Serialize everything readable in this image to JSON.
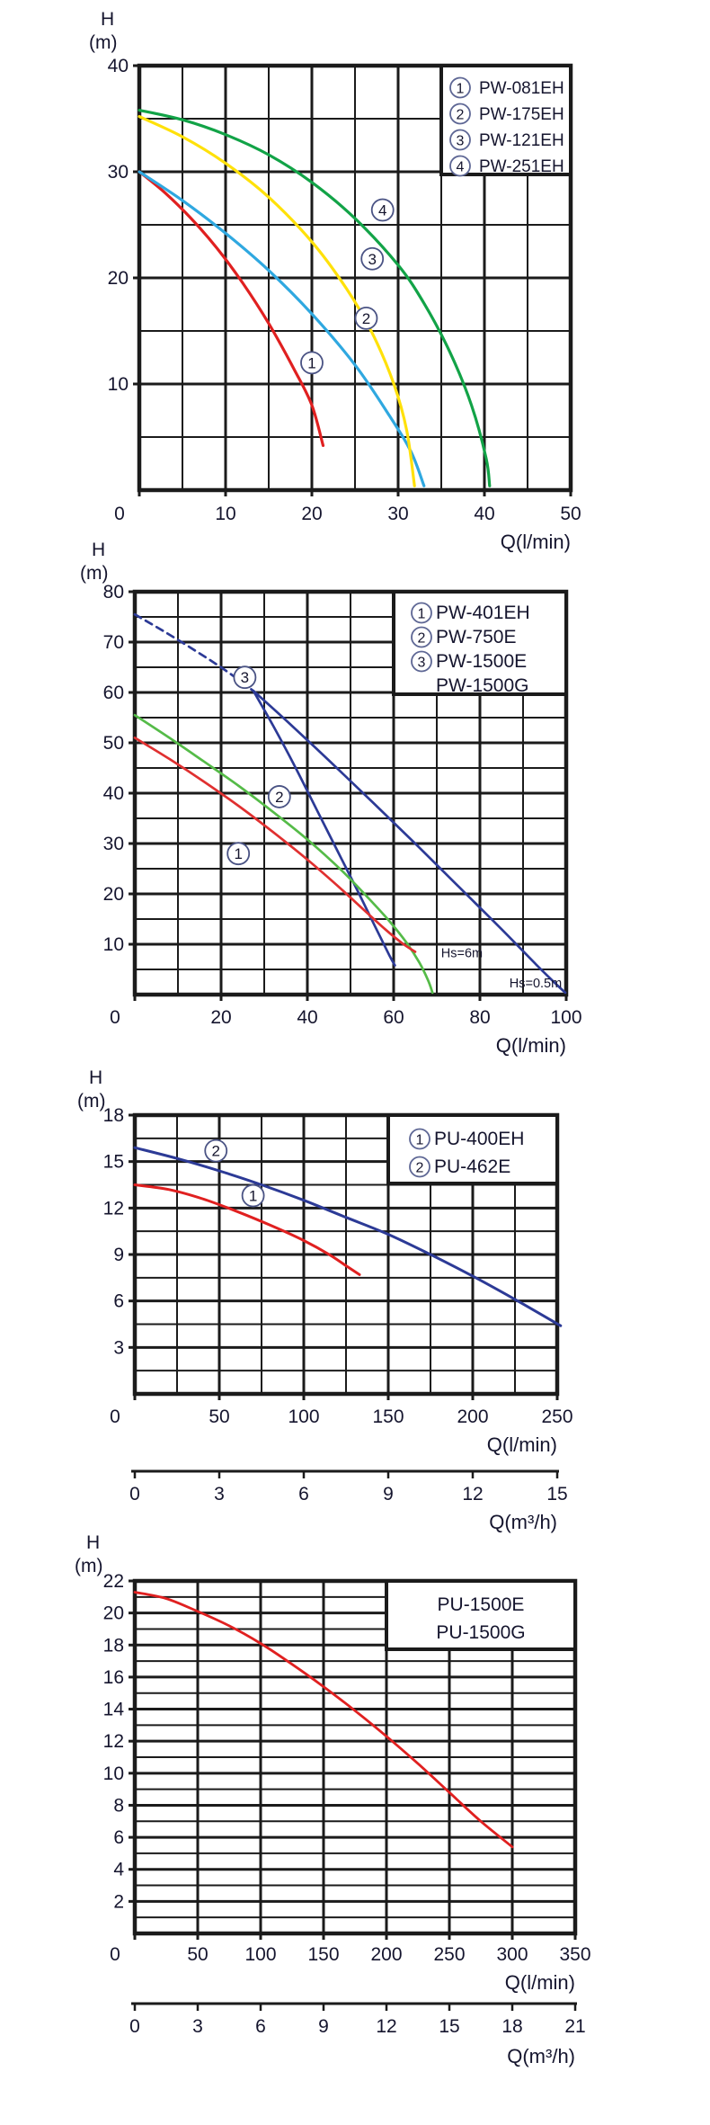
{
  "page": {
    "background": "#ffffff"
  },
  "style": {
    "grid_color": "#1b1b1b",
    "text_color": "#15152e",
    "marker_stroke": "#4a5384",
    "legend_circle_stroke": "#5d6694"
  },
  "chart_data": [
    {
      "type": "line",
      "h_axis_header": [
        "H",
        "(m)"
      ],
      "x_axis": {
        "label": "Q(l/min)",
        "min": 0,
        "max": 50,
        "grid_step": 5,
        "label_step": 10,
        "tick_values": [
          0,
          10,
          20,
          30,
          40,
          50
        ],
        "tick_labels": [
          "0",
          "10",
          "20",
          "30",
          "40",
          "50"
        ]
      },
      "y_axis": {
        "min": 0,
        "max": 40,
        "grid_step": 5,
        "label_step": 10,
        "tick_values": [
          10,
          20,
          30,
          40
        ],
        "tick_labels": [
          "10",
          "20",
          "30",
          "40"
        ]
      },
      "legend": [
        {
          "num": "1",
          "label": "PW-081EH"
        },
        {
          "num": "2",
          "label": "PW-175EH"
        },
        {
          "num": "3",
          "label": "PW-121EH"
        },
        {
          "num": "4",
          "label": "PW-251EH"
        }
      ],
      "series": [
        {
          "name": "PW-081EH",
          "color": "#e02020",
          "dash": false,
          "points": [
            [
              0,
              30
            ],
            [
              3,
              28
            ],
            [
              6,
              25.6
            ],
            [
              9,
              22.8
            ],
            [
              12,
              19.5
            ],
            [
              15,
              15.7
            ],
            [
              18,
              11.3
            ],
            [
              20,
              8
            ],
            [
              21.3,
              4.2
            ]
          ]
        },
        {
          "name": "PW-175EH",
          "color": "#2fa8e0",
          "dash": false,
          "points": [
            [
              0,
              30
            ],
            [
              5,
              27.3
            ],
            [
              10,
              24.2
            ],
            [
              15,
              20.7
            ],
            [
              20,
              16.6
            ],
            [
              25,
              11.8
            ],
            [
              29,
              7
            ],
            [
              31.5,
              3.6
            ],
            [
              33,
              0.4
            ]
          ]
        },
        {
          "name": "PW-121EH",
          "color": "#ffe10a",
          "dash": false,
          "points": [
            [
              0,
              35.2
            ],
            [
              5,
              33.3
            ],
            [
              10,
              30.8
            ],
            [
              15,
              27.6
            ],
            [
              20,
              23.4
            ],
            [
              24,
              19
            ],
            [
              27,
              14.8
            ],
            [
              29.5,
              10
            ],
            [
              31,
              5.6
            ],
            [
              31.9,
              0.4
            ]
          ]
        },
        {
          "name": "PW-251EH",
          "color": "#12a347",
          "dash": false,
          "points": [
            [
              0,
              35.8
            ],
            [
              5,
              34.9
            ],
            [
              10,
              33.5
            ],
            [
              15,
              31.6
            ],
            [
              20,
              29
            ],
            [
              25,
              25.6
            ],
            [
              30,
              21.2
            ],
            [
              33,
              17.6
            ],
            [
              36,
              13
            ],
            [
              38.5,
              8
            ],
            [
              40.2,
              3
            ],
            [
              40.6,
              0.4
            ]
          ]
        }
      ],
      "markers": [
        {
          "num": "1",
          "at": [
            20,
            12
          ]
        },
        {
          "num": "2",
          "at": [
            26.3,
            16.2
          ]
        },
        {
          "num": "3",
          "at": [
            27,
            21.8
          ]
        },
        {
          "num": "4",
          "at": [
            28.2,
            26.4
          ]
        }
      ],
      "annotations": []
    },
    {
      "type": "line",
      "h_axis_header": [
        "H",
        "(m)"
      ],
      "x_axis": {
        "label": "Q(l/min)",
        "min": 0,
        "max": 100,
        "grid_step": 10,
        "label_step": 20,
        "tick_values": [
          0,
          20,
          40,
          60,
          80,
          100
        ],
        "tick_labels": [
          "0",
          "20",
          "40",
          "60",
          "80",
          "100"
        ]
      },
      "y_axis": {
        "min": 0,
        "max": 80,
        "grid_step": 5,
        "label_step": 10,
        "tick_values": [
          10,
          20,
          30,
          40,
          50,
          60,
          70,
          80
        ],
        "tick_labels": [
          "10",
          "20",
          "30",
          "40",
          "50",
          "60",
          "70",
          "80"
        ]
      },
      "legend": [
        {
          "num": "1",
          "label": "PW-401EH"
        },
        {
          "num": "2",
          "label": "PW-750E"
        },
        {
          "num": "3",
          "label": "PW-1500E"
        },
        {
          "num": "",
          "label": "PW-1500G"
        }
      ],
      "series": [
        {
          "name": "PW-1500E/PW-1500G shut-off",
          "color": "#2c3a96",
          "dash": true,
          "points": [
            [
              0,
              75.5
            ],
            [
              7,
              72
            ],
            [
              14,
              68.3
            ],
            [
              21,
              64.4
            ],
            [
              27.5,
              60.3
            ]
          ]
        },
        {
          "name": "PW-1500E",
          "color": "#2c3a96",
          "dash": false,
          "points": [
            [
              27.5,
              60.3
            ],
            [
              32,
              53.5
            ],
            [
              37,
              45.5
            ],
            [
              42,
              37
            ],
            [
              47,
              28.5
            ],
            [
              52,
              20
            ],
            [
              56,
              13
            ],
            [
              59,
              7.8
            ],
            [
              60.3,
              5.8
            ]
          ]
        },
        {
          "name": "PW-1500G",
          "color": "#2c3a96",
          "dash": false,
          "points": [
            [
              27.5,
              60.3
            ],
            [
              35,
              54.5
            ],
            [
              45,
              46.5
            ],
            [
              55,
              38.3
            ],
            [
              65,
              30
            ],
            [
              75,
              21.5
            ],
            [
              85,
              13
            ],
            [
              93,
              6
            ],
            [
              98,
              1.8
            ],
            [
              99.8,
              0.4
            ]
          ]
        },
        {
          "name": "PW-750E",
          "color": "#55bb48",
          "dash": false,
          "points": [
            [
              0,
              55.5
            ],
            [
              8,
              51
            ],
            [
              16,
              46.3
            ],
            [
              24,
              41.5
            ],
            [
              32,
              36.3
            ],
            [
              40,
              30.8
            ],
            [
              48,
              24.6
            ],
            [
              54,
              19.3
            ],
            [
              59,
              14.6
            ],
            [
              63,
              10.3
            ],
            [
              66,
              6.3
            ],
            [
              68,
              2.8
            ],
            [
              69,
              0.4
            ]
          ]
        },
        {
          "name": "PW-401EH",
          "color": "#e03030",
          "dash": false,
          "points": [
            [
              0,
              51
            ],
            [
              8,
              46.8
            ],
            [
              16,
              42.3
            ],
            [
              24,
              37.5
            ],
            [
              32,
              32.3
            ],
            [
              40,
              26.8
            ],
            [
              47,
              21.6
            ],
            [
              53,
              16.9
            ],
            [
              58,
              13
            ],
            [
              62,
              10.2
            ],
            [
              65,
              8.5
            ]
          ]
        }
      ],
      "markers": [
        {
          "num": "1",
          "at": [
            24,
            28
          ]
        },
        {
          "num": "2",
          "at": [
            33.5,
            39.3
          ]
        },
        {
          "num": "3",
          "at": [
            25.5,
            63
          ]
        }
      ],
      "annotations": [
        {
          "text": "Hs=6m",
          "at": [
            71,
            7.4
          ],
          "anchor": "start"
        },
        {
          "text": "Hs=0.5m",
          "at": [
            99,
            1.4
          ],
          "anchor": "end"
        }
      ]
    },
    {
      "type": "line",
      "h_axis_header": [
        "H",
        "(m)"
      ],
      "x_axis": {
        "label": "Q(l/min)",
        "min": 0,
        "max": 250,
        "grid_step": 25,
        "label_step": 50,
        "tick_values": [
          0,
          50,
          100,
          150,
          200,
          250
        ],
        "tick_labels": [
          "0",
          "50",
          "100",
          "150",
          "200",
          "250"
        ]
      },
      "y_axis": {
        "min": 0,
        "max": 18,
        "grid_step": 1.5,
        "label_step": 3,
        "tick_values": [
          3,
          6,
          9,
          12,
          15,
          18
        ],
        "tick_labels": [
          "3",
          "6",
          "9",
          "12",
          "15",
          "18"
        ]
      },
      "secondary_x_axis": {
        "label": "Q(m³/h)",
        "min": 0,
        "max": 15,
        "tick_values": [
          0,
          3,
          6,
          9,
          12,
          15
        ],
        "tick_labels": [
          "0",
          "3",
          "6",
          "9",
          "12",
          "15"
        ]
      },
      "legend": [
        {
          "num": "1",
          "label": "PU-400EH"
        },
        {
          "num": "2",
          "label": "PU-462E"
        }
      ],
      "series": [
        {
          "name": "PU-462E",
          "color": "#2c3a96",
          "dash": false,
          "points": [
            [
              0,
              15.9
            ],
            [
              25,
              15.2
            ],
            [
              50,
              14.4
            ],
            [
              75,
              13.5
            ],
            [
              100,
              12.5
            ],
            [
              125,
              11.4
            ],
            [
              150,
              10.3
            ],
            [
              175,
              9
            ],
            [
              200,
              7.6
            ],
            [
              225,
              6.1
            ],
            [
              252,
              4.4
            ]
          ]
        },
        {
          "name": "PU-400EH",
          "color": "#e02020",
          "dash": false,
          "points": [
            [
              0,
              13.5
            ],
            [
              20,
              13.2
            ],
            [
              40,
              12.6
            ],
            [
              60,
              11.8
            ],
            [
              80,
              10.9
            ],
            [
              100,
              9.9
            ],
            [
              115,
              9
            ],
            [
              126,
              8.2
            ],
            [
              133,
              7.7
            ]
          ]
        }
      ],
      "markers": [
        {
          "num": "2",
          "at": [
            48,
            15.7
          ]
        },
        {
          "num": "1",
          "at": [
            70,
            12.8
          ]
        }
      ],
      "annotations": []
    },
    {
      "type": "line",
      "h_axis_header": [
        "H",
        "(m)"
      ],
      "x_axis": {
        "label": "Q(l/min)",
        "min": 0,
        "max": 350,
        "grid_step": 50,
        "label_step": 50,
        "tick_values": [
          0,
          50,
          100,
          150,
          200,
          250,
          300,
          350
        ],
        "tick_labels": [
          "0",
          "50",
          "100",
          "150",
          "200",
          "250",
          "300",
          "350"
        ]
      },
      "y_axis": {
        "min": 0,
        "max": 22,
        "grid_step": 1,
        "label_step": 2,
        "tick_values": [
          2,
          4,
          6,
          8,
          10,
          12,
          14,
          16,
          18,
          20,
          22
        ],
        "tick_labels": [
          "2",
          "4",
          "6",
          "8",
          "10",
          "12",
          "14",
          "16",
          "18",
          "20",
          "22"
        ]
      },
      "secondary_x_axis": {
        "label": "Q(m³/h)",
        "min": 0,
        "max": 21,
        "tick_values": [
          0,
          3,
          6,
          9,
          12,
          15,
          18,
          21
        ],
        "tick_labels": [
          "0",
          "3",
          "6",
          "9",
          "12",
          "15",
          "18",
          "21"
        ]
      },
      "legend": [
        {
          "num": "",
          "label": "PU-1500E"
        },
        {
          "num": "",
          "label": "PU-1500G"
        }
      ],
      "series": [
        {
          "name": "PU-1500E/PU-1500G",
          "color": "#e02020",
          "dash": false,
          "points": [
            [
              0,
              21.3
            ],
            [
              25,
              20.9
            ],
            [
              50,
              20.1
            ],
            [
              75,
              19.2
            ],
            [
              100,
              18.1
            ],
            [
              125,
              16.8
            ],
            [
              150,
              15.4
            ],
            [
              175,
              13.9
            ],
            [
              200,
              12.3
            ],
            [
              225,
              10.6
            ],
            [
              250,
              8.8
            ],
            [
              275,
              7
            ],
            [
              300,
              5.4
            ]
          ]
        }
      ],
      "markers": [],
      "annotations": []
    }
  ]
}
